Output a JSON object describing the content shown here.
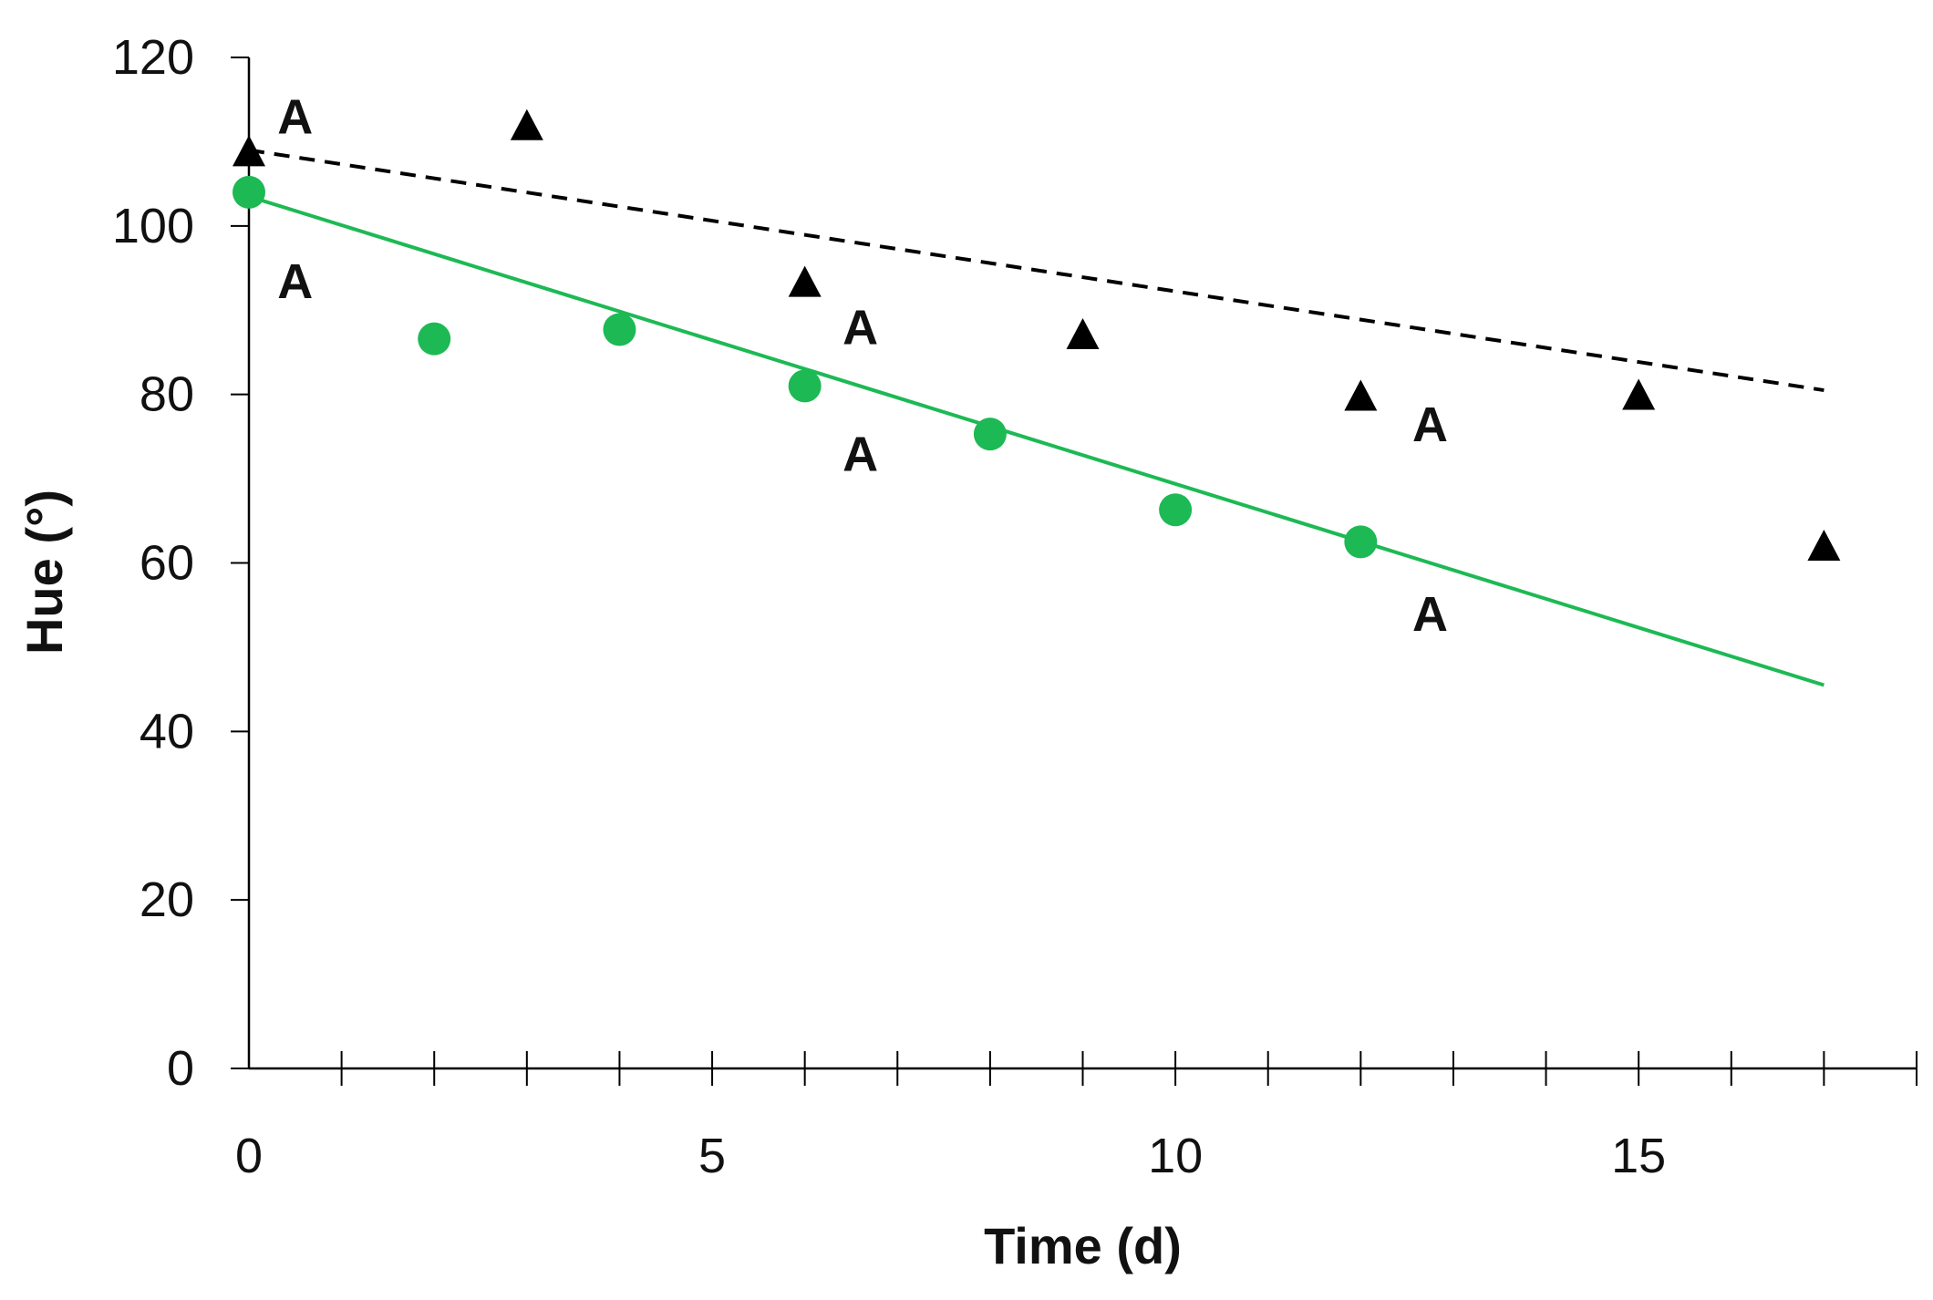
{
  "chart_data": {
    "type": "scatter",
    "title": "",
    "xlabel": "Time (d)",
    "ylabel": "Hue (°)",
    "xlim": [
      0,
      18
    ],
    "ylim": [
      0,
      120
    ],
    "xticks": [
      0,
      5,
      10,
      15
    ],
    "xminor_step": 1,
    "yticks": [
      0,
      20,
      40,
      60,
      80,
      100,
      120
    ],
    "grid": false,
    "series": [
      {
        "name": "triangle series",
        "marker": "triangle",
        "color": "#000000",
        "points": [
          {
            "x": 0,
            "y": 108.7
          },
          {
            "x": 3,
            "y": 111.8
          },
          {
            "x": 6,
            "y": 93.2
          },
          {
            "x": 9,
            "y": 87.0
          },
          {
            "x": 12,
            "y": 79.7
          },
          {
            "x": 15,
            "y": 79.8
          },
          {
            "x": 17,
            "y": 61.9
          }
        ],
        "trendline": {
          "style": "dashed",
          "color": "#000000",
          "from": {
            "x": 0,
            "y": 109
          },
          "to": {
            "x": 17,
            "y": 80.5
          }
        }
      },
      {
        "name": "circle series",
        "marker": "circle",
        "color": "#1db954",
        "points": [
          {
            "x": 0,
            "y": 104.0
          },
          {
            "x": 2,
            "y": 86.6
          },
          {
            "x": 4,
            "y": 87.7
          },
          {
            "x": 6,
            "y": 81.0
          },
          {
            "x": 8,
            "y": 75.3
          },
          {
            "x": 10,
            "y": 66.3
          },
          {
            "x": 12,
            "y": 62.5
          }
        ],
        "trendline": {
          "style": "solid",
          "color": "#1db954",
          "from": {
            "x": 0,
            "y": 103.5
          },
          "to": {
            "x": 17,
            "y": 45.5
          }
        }
      }
    ],
    "annotations": [
      {
        "text": "A",
        "x": 0.5,
        "y": 113
      },
      {
        "text": "A",
        "x": 0.5,
        "y": 93.5
      },
      {
        "text": "A",
        "x": 6.6,
        "y": 88
      },
      {
        "text": "A",
        "x": 6.6,
        "y": 73
      },
      {
        "text": "A",
        "x": 12.75,
        "y": 76.5
      },
      {
        "text": "A",
        "x": 12.75,
        "y": 54
      }
    ]
  }
}
